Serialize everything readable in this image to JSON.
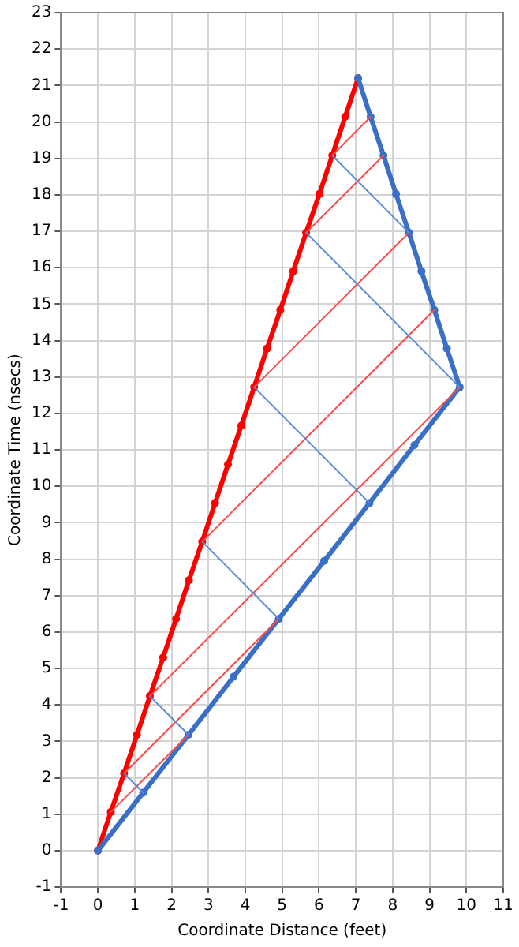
{
  "chart_data": {
    "type": "line",
    "xlabel": "Coordinate Distance (feet)",
    "ylabel": "Coordinate Time (nsecs)",
    "xlim": [
      -1,
      11
    ],
    "xticks": [
      -1,
      0,
      1,
      2,
      3,
      4,
      5,
      6,
      7,
      8,
      9,
      10,
      11
    ],
    "ylim": [
      -1,
      23
    ],
    "yticks": [
      -1,
      0,
      1,
      2,
      3,
      4,
      5,
      6,
      7,
      8,
      9,
      10,
      11,
      12,
      13,
      14,
      15,
      16,
      17,
      18,
      19,
      20,
      21,
      22,
      23
    ],
    "grid": true,
    "legend": false,
    "marker": "circle",
    "series": [
      {
        "color": "#ff0000",
        "x": [
          0,
          0.35,
          0.71,
          1.06,
          1.41,
          1.77,
          2.12,
          2.47,
          2.83,
          3.18,
          3.53,
          3.89,
          4.24,
          4.59,
          4.95,
          5.3,
          5.65,
          6.01,
          6.36,
          6.71,
          7.06
        ],
        "values": [
          0,
          1.06,
          2.12,
          3.18,
          4.24,
          5.3,
          6.36,
          7.42,
          8.48,
          9.54,
          10.6,
          11.66,
          12.72,
          13.78,
          14.84,
          15.9,
          16.96,
          18.02,
          19.08,
          20.14,
          21.2
        ]
      },
      {
        "color": "#3a6fc8",
        "x": [
          0,
          1.23,
          2.46,
          3.68,
          4.91,
          6.14,
          7.37,
          8.59,
          9.82,
          9.47,
          9.13,
          8.78,
          8.44,
          8.09,
          7.75,
          7.4,
          7.06
        ],
        "values": [
          0,
          1.59,
          3.18,
          4.77,
          6.36,
          7.95,
          9.54,
          11.13,
          12.72,
          13.78,
          14.84,
          15.9,
          16.96,
          18.02,
          19.08,
          20.14,
          21.2
        ]
      },
      {
        "color": "#ff4a4a",
        "marker": "none",
        "x": [
          0.35,
          2.46
        ],
        "values": [
          1.06,
          3.18
        ]
      },
      {
        "color": "#ff4a4a",
        "marker": "none",
        "x": [
          0.71,
          4.91
        ],
        "values": [
          2.12,
          6.36
        ]
      },
      {
        "color": "#ff4a4a",
        "marker": "none",
        "x": [
          1.41,
          9.82
        ],
        "values": [
          4.24,
          12.72
        ]
      },
      {
        "color": "#ff4a4a",
        "marker": "none",
        "x": [
          2.83,
          9.13
        ],
        "values": [
          8.48,
          14.84
        ]
      },
      {
        "color": "#ff4a4a",
        "marker": "none",
        "x": [
          4.24,
          8.44
        ],
        "values": [
          12.72,
          16.96
        ]
      },
      {
        "color": "#ff4a4a",
        "marker": "none",
        "x": [
          5.65,
          7.75
        ],
        "values": [
          16.96,
          19.08
        ]
      },
      {
        "color": "#ff4a4a",
        "marker": "none",
        "x": [
          6.36,
          7.4
        ],
        "values": [
          19.08,
          20.14
        ]
      },
      {
        "color": "#5b8ad6",
        "marker": "none",
        "x": [
          1.23,
          0.71
        ],
        "values": [
          1.59,
          2.12
        ]
      },
      {
        "color": "#5b8ad6",
        "marker": "none",
        "x": [
          2.46,
          1.41
        ],
        "values": [
          3.18,
          4.24
        ]
      },
      {
        "color": "#5b8ad6",
        "marker": "none",
        "x": [
          4.91,
          2.83
        ],
        "values": [
          6.36,
          8.48
        ]
      },
      {
        "color": "#5b8ad6",
        "marker": "none",
        "x": [
          7.37,
          4.24
        ],
        "values": [
          9.54,
          12.72
        ]
      },
      {
        "color": "#5b8ad6",
        "marker": "none",
        "x": [
          9.82,
          5.65
        ],
        "values": [
          12.72,
          16.96
        ]
      },
      {
        "color": "#5b8ad6",
        "marker": "none",
        "x": [
          8.44,
          6.36
        ],
        "values": [
          16.96,
          19.08
        ]
      }
    ]
  }
}
